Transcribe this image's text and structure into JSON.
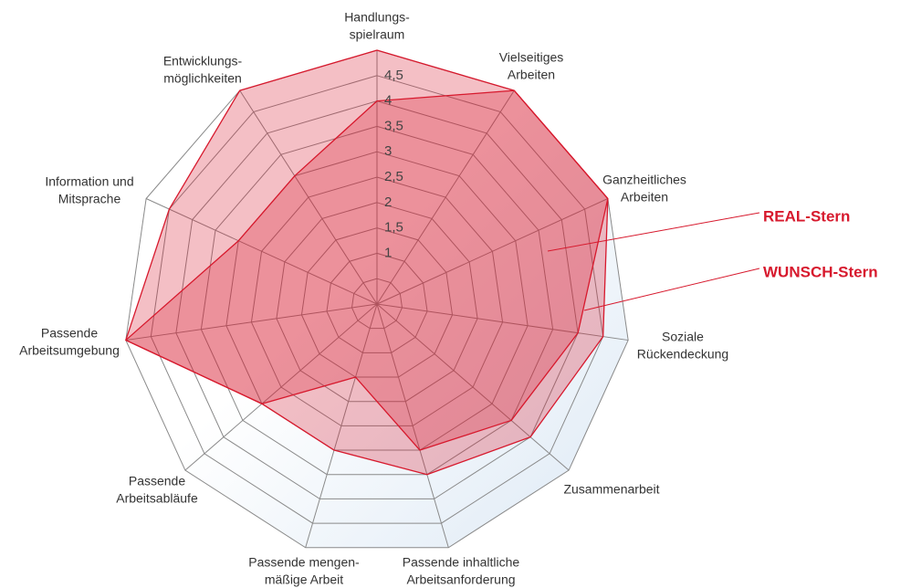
{
  "chart_data": {
    "type": "radar",
    "categories": [
      [
        "Handlungs-",
        "spielraum"
      ],
      [
        "Vielseitiges",
        "Arbeiten"
      ],
      [
        "Ganzheitliches",
        "Arbeiten"
      ],
      [
        "Soziale",
        "Rückendeckung"
      ],
      [
        "Zusammenarbeit"
      ],
      [
        "Passende inhaltliche",
        "Arbeitsanforderung"
      ],
      [
        "Passende mengen-",
        "mäßige Arbeit"
      ],
      [
        "Passende",
        "Arbeitsabläufe"
      ],
      [
        "Passende",
        "Arbeitsumgebung"
      ],
      [
        "Information und",
        "Mitsprache"
      ],
      [
        "Entwicklungs-",
        "möglichkeiten"
      ]
    ],
    "rlim": [
      0,
      5
    ],
    "rticks": [
      {
        "value": 0.5,
        "label": null
      },
      1,
      {
        "value": 1.5,
        "label": "1,5"
      },
      2,
      {
        "value": 2.5,
        "label": "2,5"
      },
      3,
      {
        "value": 3.5,
        "label": "3,5"
      },
      4,
      {
        "value": 4.5,
        "label": "4,5"
      },
      {
        "value": 5,
        "label": null
      }
    ],
    "grid": true,
    "series": [
      {
        "name": "REAL-Stern",
        "color": "#d7192d",
        "values": [
          4,
          5,
          5,
          4,
          3.5,
          3,
          1.5,
          3,
          5,
          3,
          3
        ]
      },
      {
        "name": "WUNSCH-Stern",
        "color": "#d7192d",
        "values": [
          5,
          5,
          5,
          4.5,
          4,
          3.5,
          3,
          3,
          5,
          4.5,
          5
        ]
      }
    ]
  }
}
